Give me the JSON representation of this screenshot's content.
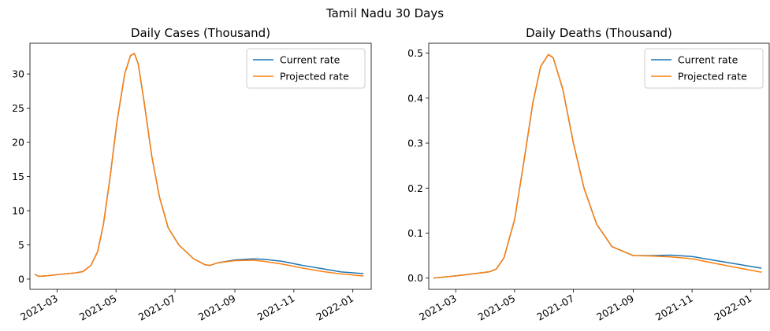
{
  "figure": {
    "title": "Tamil Nadu 30 Days"
  },
  "colors": {
    "current": "#1f77b4",
    "projected": "#ff7f0e"
  },
  "chart_data": [
    {
      "type": "line",
      "title": "Daily Cases (Thousand)",
      "xlabel": "",
      "ylabel": "",
      "xlim": [
        "2021-02-01",
        "2022-01-20"
      ],
      "ylim": [
        -1.5,
        34.5
      ],
      "x_ticks": [
        "2021-03-01",
        "2021-05-01",
        "2021-07-01",
        "2021-09-01",
        "2021-11-01",
        "2022-01-01"
      ],
      "x_tick_labels": [
        "2021-03",
        "2021-05",
        "2021-07",
        "2021-09",
        "2021-11",
        "2022-01"
      ],
      "y_ticks": [
        0,
        5,
        10,
        15,
        20,
        25,
        30
      ],
      "y_tick_labels": [
        "0",
        "5",
        "10",
        "15",
        "20",
        "25",
        "30"
      ],
      "legend": "top-right",
      "grid": false,
      "series": [
        {
          "name": "Current rate",
          "color": "#1f77b4",
          "points": [
            [
              "2021-02-06",
              0.7
            ],
            [
              "2021-02-10",
              0.4
            ],
            [
              "2021-02-20",
              0.5
            ],
            [
              "2021-03-01",
              0.65
            ],
            [
              "2021-03-20",
              0.9
            ],
            [
              "2021-03-28",
              1.1
            ],
            [
              "2021-04-05",
              2.0
            ],
            [
              "2021-04-12",
              4.0
            ],
            [
              "2021-04-18",
              8.0
            ],
            [
              "2021-04-25",
              15.0
            ],
            [
              "2021-05-02",
              23.0
            ],
            [
              "2021-05-10",
              30.0
            ],
            [
              "2021-05-16",
              32.7
            ],
            [
              "2021-05-20",
              33.0
            ],
            [
              "2021-05-24",
              31.5
            ],
            [
              "2021-05-30",
              26.0
            ],
            [
              "2021-06-07",
              18.0
            ],
            [
              "2021-06-15",
              12.0
            ],
            [
              "2021-06-24",
              7.5
            ],
            [
              "2021-07-05",
              5.0
            ],
            [
              "2021-07-20",
              3.0
            ],
            [
              "2021-08-01",
              2.1
            ],
            [
              "2021-08-06",
              2.0
            ],
            [
              "2021-08-15",
              2.4
            ],
            [
              "2021-09-01",
              2.8
            ],
            [
              "2021-09-20",
              2.95
            ],
            [
              "2021-10-01",
              2.9
            ],
            [
              "2021-10-20",
              2.6
            ],
            [
              "2021-11-10",
              2.0
            ],
            [
              "2021-12-01",
              1.5
            ],
            [
              "2021-12-20",
              1.05
            ],
            [
              "2022-01-12",
              0.8
            ]
          ]
        },
        {
          "name": "Projected rate",
          "color": "#ff7f0e",
          "points": [
            [
              "2021-02-06",
              0.7
            ],
            [
              "2021-02-10",
              0.4
            ],
            [
              "2021-02-20",
              0.5
            ],
            [
              "2021-03-01",
              0.65
            ],
            [
              "2021-03-20",
              0.9
            ],
            [
              "2021-03-28",
              1.1
            ],
            [
              "2021-04-05",
              2.0
            ],
            [
              "2021-04-12",
              4.0
            ],
            [
              "2021-04-18",
              8.0
            ],
            [
              "2021-04-25",
              15.0
            ],
            [
              "2021-05-02",
              23.0
            ],
            [
              "2021-05-10",
              30.0
            ],
            [
              "2021-05-16",
              32.7
            ],
            [
              "2021-05-20",
              33.0
            ],
            [
              "2021-05-24",
              31.5
            ],
            [
              "2021-05-30",
              26.0
            ],
            [
              "2021-06-07",
              18.0
            ],
            [
              "2021-06-15",
              12.0
            ],
            [
              "2021-06-24",
              7.5
            ],
            [
              "2021-07-05",
              5.0
            ],
            [
              "2021-07-20",
              3.0
            ],
            [
              "2021-08-01",
              2.1
            ],
            [
              "2021-08-06",
              2.0
            ],
            [
              "2021-08-15",
              2.4
            ],
            [
              "2021-09-01",
              2.7
            ],
            [
              "2021-09-20",
              2.75
            ],
            [
              "2021-10-01",
              2.6
            ],
            [
              "2021-10-20",
              2.2
            ],
            [
              "2021-11-10",
              1.6
            ],
            [
              "2021-12-01",
              1.1
            ],
            [
              "2021-12-20",
              0.75
            ],
            [
              "2022-01-12",
              0.45
            ]
          ]
        }
      ]
    },
    {
      "type": "line",
      "title": "Daily Deaths (Thousand)",
      "xlabel": "",
      "ylabel": "",
      "xlim": [
        "2021-02-01",
        "2022-01-20"
      ],
      "ylim": [
        -0.025,
        0.522
      ],
      "x_ticks": [
        "2021-03-01",
        "2021-05-01",
        "2021-07-01",
        "2021-09-01",
        "2021-11-01",
        "2022-01-01"
      ],
      "x_tick_labels": [
        "2021-03",
        "2021-05",
        "2021-07",
        "2021-09",
        "2021-11",
        "2022-01"
      ],
      "y_ticks": [
        0.0,
        0.1,
        0.2,
        0.3,
        0.4,
        0.5
      ],
      "y_tick_labels": [
        "0.0",
        "0.1",
        "0.2",
        "0.3",
        "0.4",
        "0.5"
      ],
      "legend": "top-right",
      "grid": false,
      "series": [
        {
          "name": "Current rate",
          "color": "#1f77b4",
          "points": [
            [
              "2021-02-06",
              0.0
            ],
            [
              "2021-03-01",
              0.005
            ],
            [
              "2021-03-25",
              0.011
            ],
            [
              "2021-04-05",
              0.014
            ],
            [
              "2021-04-12",
              0.02
            ],
            [
              "2021-04-20",
              0.045
            ],
            [
              "2021-05-01",
              0.13
            ],
            [
              "2021-05-10",
              0.25
            ],
            [
              "2021-05-20",
              0.39
            ],
            [
              "2021-05-28",
              0.47
            ],
            [
              "2021-06-05",
              0.497
            ],
            [
              "2021-06-10",
              0.49
            ],
            [
              "2021-06-20",
              0.42
            ],
            [
              "2021-07-01",
              0.3
            ],
            [
              "2021-07-12",
              0.2
            ],
            [
              "2021-07-25",
              0.12
            ],
            [
              "2021-08-10",
              0.07
            ],
            [
              "2021-09-01",
              0.05
            ],
            [
              "2021-09-20",
              0.05
            ],
            [
              "2021-10-10",
              0.051
            ],
            [
              "2021-11-01",
              0.048
            ],
            [
              "2021-12-01",
              0.037
            ],
            [
              "2022-01-12",
              0.022
            ]
          ]
        },
        {
          "name": "Projected rate",
          "color": "#ff7f0e",
          "points": [
            [
              "2021-02-06",
              0.0
            ],
            [
              "2021-03-01",
              0.005
            ],
            [
              "2021-03-25",
              0.011
            ],
            [
              "2021-04-05",
              0.014
            ],
            [
              "2021-04-12",
              0.02
            ],
            [
              "2021-04-20",
              0.045
            ],
            [
              "2021-05-01",
              0.13
            ],
            [
              "2021-05-10",
              0.25
            ],
            [
              "2021-05-20",
              0.39
            ],
            [
              "2021-05-28",
              0.47
            ],
            [
              "2021-06-05",
              0.497
            ],
            [
              "2021-06-10",
              0.49
            ],
            [
              "2021-06-20",
              0.42
            ],
            [
              "2021-07-01",
              0.3
            ],
            [
              "2021-07-12",
              0.2
            ],
            [
              "2021-07-25",
              0.12
            ],
            [
              "2021-08-10",
              0.07
            ],
            [
              "2021-09-01",
              0.05
            ],
            [
              "2021-09-20",
              0.049
            ],
            [
              "2021-10-10",
              0.047
            ],
            [
              "2021-11-01",
              0.043
            ],
            [
              "2021-12-01",
              0.03
            ],
            [
              "2022-01-12",
              0.013
            ]
          ]
        }
      ]
    }
  ]
}
